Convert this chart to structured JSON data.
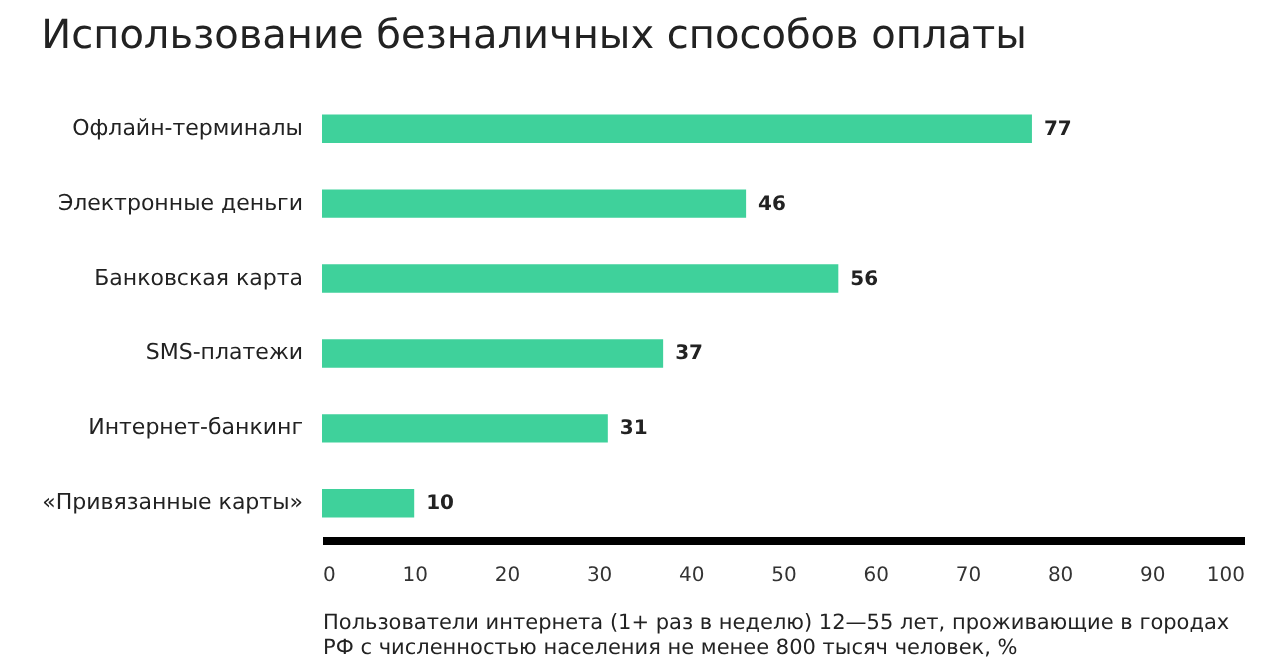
{
  "chart_data": {
    "type": "bar",
    "orientation": "horizontal",
    "title": "Использование безналичных способов оплаты",
    "categories": [
      "Офлайн-терминалы",
      "Электронные деньги",
      "Банковская карта",
      "SMS-платежи",
      "Интернет-банкинг",
      "«Привязанные карты»"
    ],
    "values": [
      77,
      46,
      56,
      37,
      31,
      10
    ],
    "color": "#3fd19b",
    "xlim": [
      0,
      100
    ],
    "xticks": [
      0,
      10,
      20,
      30,
      40,
      50,
      60,
      70,
      80,
      90,
      100
    ],
    "xlabel": "Пользователи интернета (1+ раз в неделю) 12—55 лет, проживающие в городах\nРФ с численностью населения не менее 800 тысяч человек, %",
    "data_labels": true,
    "grid": false
  }
}
